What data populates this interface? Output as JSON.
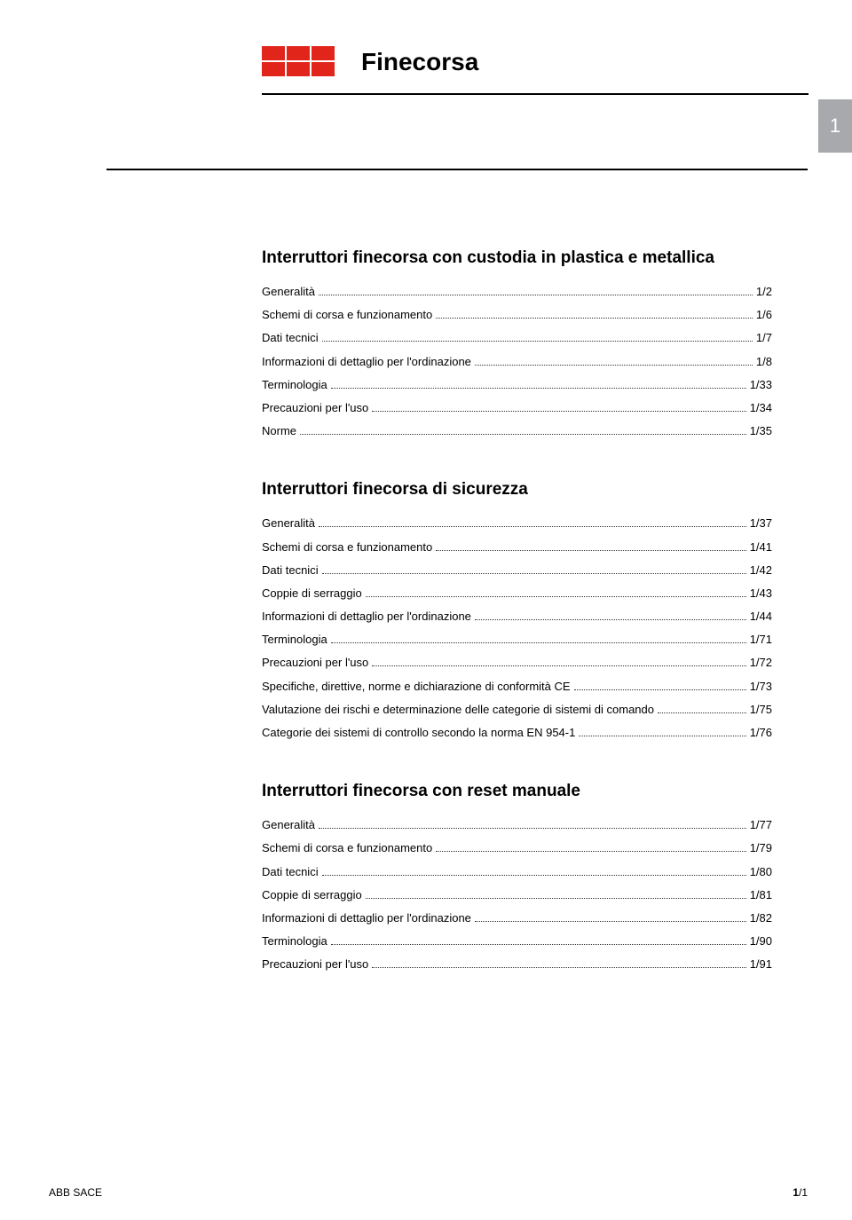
{
  "brand_color": "#e1251a",
  "tab_color": "#a7a9ac",
  "page_title": "Finecorsa",
  "side_tab": "1",
  "sections": [
    {
      "title": "Interruttori finecorsa con custodia in plastica e metallica",
      "entries": [
        {
          "label": "Generalità",
          "page": "1/2"
        },
        {
          "label": "Schemi di corsa e funzionamento",
          "page": "1/6"
        },
        {
          "label": "Dati tecnici",
          "page": "1/7"
        },
        {
          "label": "Informazioni di dettaglio per l'ordinazione",
          "page": "1/8"
        },
        {
          "label": "Terminologia",
          "page": "1/33"
        },
        {
          "label": "Precauzioni per l'uso",
          "page": "1/34"
        },
        {
          "label": "Norme",
          "page": "1/35"
        }
      ]
    },
    {
      "title": "Interruttori finecorsa di sicurezza",
      "entries": [
        {
          "label": "Generalità",
          "page": "1/37"
        },
        {
          "label": "Schemi di corsa e funzionamento",
          "page": "1/41"
        },
        {
          "label": "Dati tecnici",
          "page": "1/42"
        },
        {
          "label": "Coppie di serraggio",
          "page": "1/43"
        },
        {
          "label": "Informazioni di dettaglio per l'ordinazione",
          "page": "1/44"
        },
        {
          "label": "Terminologia",
          "page": "1/71"
        },
        {
          "label": "Precauzioni per l'uso",
          "page": "1/72"
        },
        {
          "label": "Specifiche, direttive, norme e dichiarazione di conformità CE",
          "page": "1/73"
        },
        {
          "label": "Valutazione dei rischi e determinazione delle categorie di sistemi di comando",
          "page": "1/75"
        },
        {
          "label": "Categorie dei sistemi di controllo secondo la norma EN 954-1",
          "page": "1/76"
        }
      ]
    },
    {
      "title": "Interruttori finecorsa con reset manuale",
      "entries": [
        {
          "label": "Generalità",
          "page": "1/77"
        },
        {
          "label": "Schemi di corsa e funzionamento",
          "page": "1/79"
        },
        {
          "label": "Dati tecnici",
          "page": "1/80"
        },
        {
          "label": "Coppie di serraggio",
          "page": "1/81"
        },
        {
          "label": "Informazioni di dettaglio per l'ordinazione",
          "page": "1/82"
        },
        {
          "label": "Terminologia",
          "page": "1/90"
        },
        {
          "label": "Precauzioni per l'uso",
          "page": "1/91"
        }
      ]
    }
  ],
  "footer": {
    "left": "ABB SACE",
    "right_section": "1",
    "right_page": "/1"
  }
}
